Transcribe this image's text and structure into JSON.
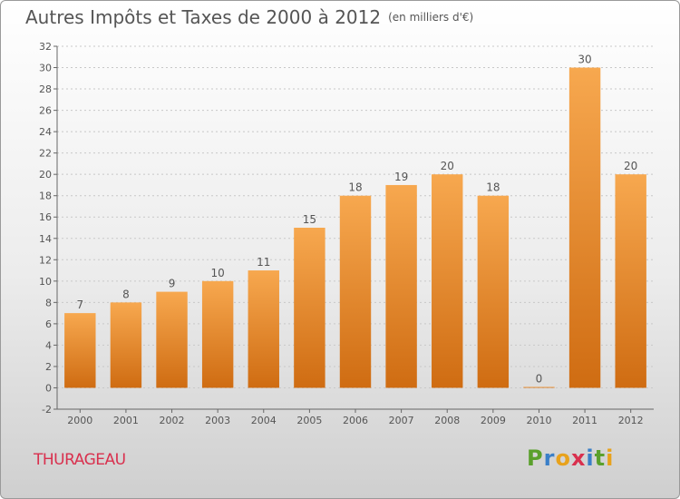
{
  "header": {
    "title": "Autres Impôts et Taxes de 2000 à 2012",
    "subtitle": "(en milliers d'€)"
  },
  "footer": {
    "commune": "THURAGEAU",
    "logo_letters": [
      "P",
      "r",
      "o",
      "x",
      "i",
      "t",
      "i"
    ],
    "logo_colors": [
      "#5aa02c",
      "#3a7fc8",
      "#e8a21c",
      "#d9304e",
      "#3a7fc8",
      "#5aa02c",
      "#e8a21c"
    ]
  },
  "colors": {
    "bar_top": "#f7a84f",
    "bar_bottom": "#cf6c12",
    "axis": "#666666",
    "label": "#555555",
    "grid": "#c8c8c8"
  },
  "chart_data": {
    "type": "bar",
    "categories": [
      "2000",
      "2001",
      "2002",
      "2003",
      "2004",
      "2005",
      "2006",
      "2007",
      "2008",
      "2009",
      "2010",
      "2011",
      "2012"
    ],
    "values": [
      7,
      8,
      9,
      10,
      11,
      15,
      18,
      19,
      20,
      18,
      0,
      30,
      20
    ],
    "data_labels": [
      "7",
      "8",
      "9",
      "10",
      "11",
      "15",
      "18",
      "19",
      "20",
      "18",
      "0",
      "30",
      "20"
    ],
    "title": "Autres Impôts et Taxes de 2000 à 2012",
    "subtitle": "(en milliers d'€)",
    "xlabel": "",
    "ylabel": "",
    "ylim": [
      -2,
      32
    ],
    "yticks": [
      "-2",
      "0",
      "2",
      "4",
      "6",
      "8",
      "10",
      "12",
      "14",
      "16",
      "18",
      "20",
      "22",
      "24",
      "26",
      "28",
      "30",
      "32"
    ],
    "grid": true,
    "legend": "none"
  }
}
